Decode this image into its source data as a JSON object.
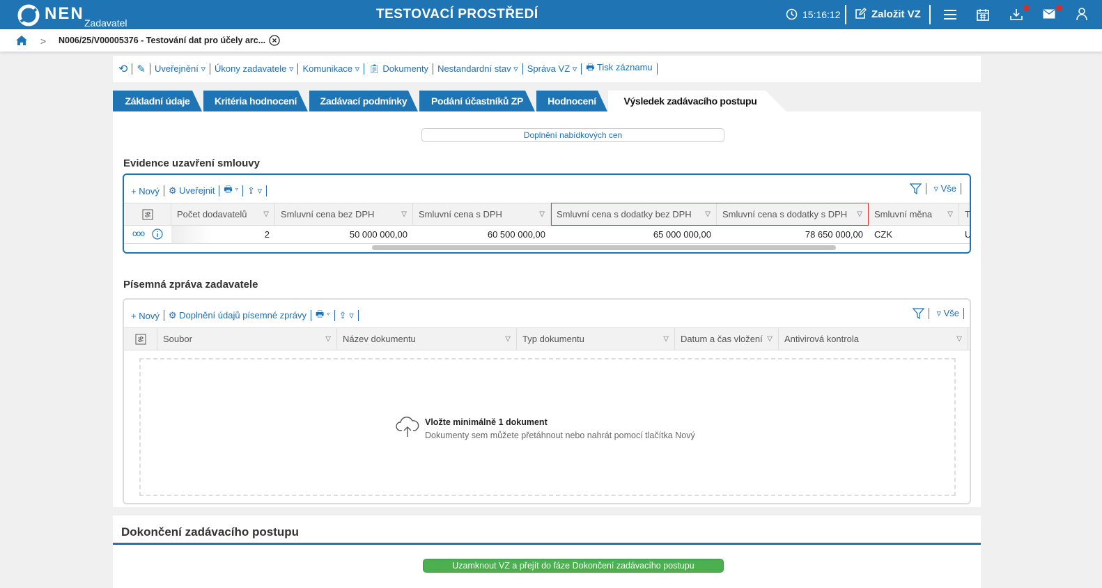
{
  "header": {
    "logo": "NEN",
    "subtitle": "Zadavatel",
    "env": "TESTOVACÍ PROSTŘEDÍ",
    "time": "15:16:12",
    "create": "Založit VZ"
  },
  "breadcrumb": {
    "title": "N006/25/V00005376 - Testování dat pro účely arc..."
  },
  "toolbar": [
    "Uveřejnění",
    "Úkony zadavatele",
    "Komunikace",
    "Dokumenty",
    "Nestandardní stav",
    "Správa VZ",
    "Tisk záznamu"
  ],
  "tabs": [
    "Základní údaje",
    "Kritéria hodnocení",
    "Zadávací podmínky",
    "Podání účastníků ZP",
    "Hodnocení",
    "Výsledek zadávacího postupu"
  ],
  "main": {
    "supplement_button": "Doplnění nabídkových cen",
    "contract": {
      "title": "Evidence uzavření smlouvy",
      "new": "Nový",
      "publish": "Uveřejnit",
      "all": "Vše",
      "columns": [
        "Počet dodavatelů",
        "Smluvní cena bez DPH",
        "Smluvní cena s DPH",
        "Smluvní cena s dodatky bez DPH",
        "Smluvní cena s dodatky s DPH",
        "Smluvní měna",
        "T"
      ],
      "row": [
        "2",
        "50 000 000,00",
        "60 500 000,00",
        "65 000 000,00",
        "78 650 000,00",
        "CZK",
        "U"
      ]
    },
    "report": {
      "title": "Písemná zpráva zadavatele",
      "new": "Nový",
      "fill": "Doplnění údajů písemné zprávy",
      "all": "Vše",
      "columns": [
        "Soubor",
        "Název dokumentu",
        "Typ dokumentu",
        "Datum a čas vložení",
        "Antivirová kontrola"
      ],
      "drop_title": "Vložte minimálně 1 dokument",
      "drop_hint": "Dokumenty sem můžete přetáhnout nebo nahrát pomocí tlačítka Nový"
    }
  },
  "finish": {
    "title": "Dokončení zadávacího postupu",
    "button": "Uzamknout VZ a přejít do fáze Dokončení zadávacího postupu"
  },
  "colors": {
    "brand": "#1f75b3",
    "success": "#4caf50",
    "highlight": "#e53935",
    "badge": "#d32f2f"
  }
}
